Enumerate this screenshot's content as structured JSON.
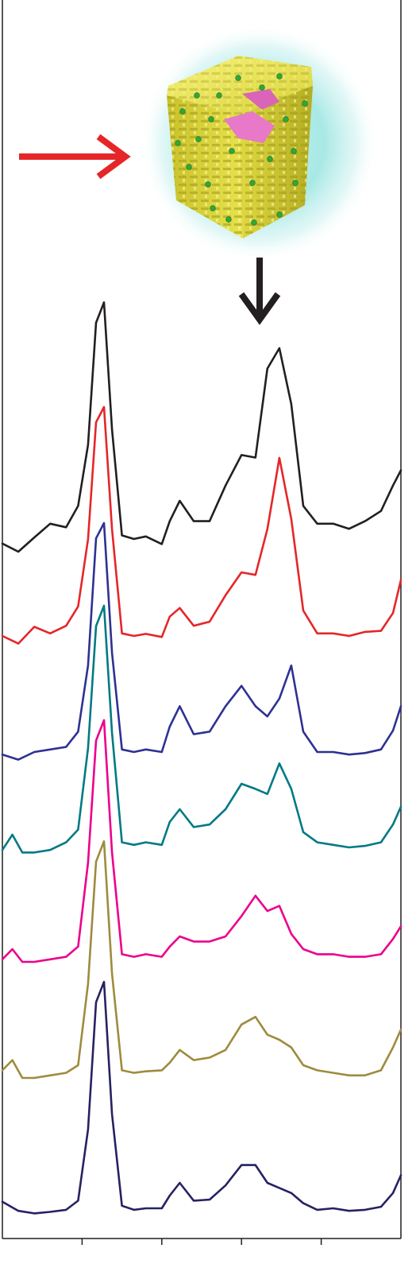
{
  "chart_data": {
    "type": "line",
    "title": "",
    "xlabel": "",
    "ylabel": "",
    "xlim": [
      0,
      10
    ],
    "ylim": [
      0,
      12
    ],
    "grid": false,
    "legend": "none",
    "x_ticks": [
      2,
      4,
      6,
      8
    ],
    "annotations": [
      {
        "kind": "arrow",
        "direction": "right",
        "color": "#e52629",
        "target": "nanocube-illustration"
      },
      {
        "kind": "arrow",
        "direction": "down",
        "color": "#231f20",
        "target_x": 6.4,
        "target_series": 0
      }
    ],
    "series": [
      {
        "color": "#231f20",
        "values": [
          [
            0.0,
            1.16
          ],
          [
            0.4,
            1.0
          ],
          [
            0.8,
            1.28
          ],
          [
            1.2,
            1.55
          ],
          [
            1.6,
            1.48
          ],
          [
            1.9,
            1.9
          ],
          [
            2.15,
            3.1
          ],
          [
            2.35,
            5.5
          ],
          [
            2.55,
            5.9
          ],
          [
            2.75,
            3.4
          ],
          [
            3.0,
            1.32
          ],
          [
            3.3,
            1.25
          ],
          [
            3.6,
            1.3
          ],
          [
            4.0,
            1.15
          ],
          [
            4.2,
            1.6
          ],
          [
            4.45,
            2.0
          ],
          [
            4.8,
            1.6
          ],
          [
            5.2,
            1.6
          ],
          [
            5.6,
            2.3
          ],
          [
            6.0,
            2.9
          ],
          [
            6.35,
            2.85
          ],
          [
            6.65,
            4.6
          ],
          [
            6.95,
            5.0
          ],
          [
            7.25,
            3.9
          ],
          [
            7.55,
            1.9
          ],
          [
            7.9,
            1.55
          ],
          [
            8.3,
            1.55
          ],
          [
            8.7,
            1.45
          ],
          [
            9.1,
            1.6
          ],
          [
            9.5,
            1.8
          ],
          [
            9.8,
            2.3
          ],
          [
            10.0,
            2.6
          ]
        ]
      },
      {
        "color": "#e52629",
        "values": [
          [
            0.0,
            1.0
          ],
          [
            0.4,
            0.85
          ],
          [
            0.8,
            1.18
          ],
          [
            1.2,
            1.05
          ],
          [
            1.6,
            1.2
          ],
          [
            1.9,
            1.58
          ],
          [
            2.15,
            2.9
          ],
          [
            2.35,
            5.2
          ],
          [
            2.55,
            5.5
          ],
          [
            2.75,
            3.1
          ],
          [
            3.0,
            1.05
          ],
          [
            3.3,
            1.0
          ],
          [
            3.6,
            1.04
          ],
          [
            4.0,
            0.98
          ],
          [
            4.2,
            1.38
          ],
          [
            4.45,
            1.55
          ],
          [
            4.8,
            1.2
          ],
          [
            5.2,
            1.28
          ],
          [
            5.6,
            1.8
          ],
          [
            6.0,
            2.25
          ],
          [
            6.35,
            2.2
          ],
          [
            6.65,
            3.1
          ],
          [
            6.95,
            4.5
          ],
          [
            7.25,
            3.3
          ],
          [
            7.55,
            1.5
          ],
          [
            7.9,
            1.05
          ],
          [
            8.3,
            1.05
          ],
          [
            8.7,
            1.0
          ],
          [
            9.1,
            1.08
          ],
          [
            9.5,
            1.1
          ],
          [
            9.8,
            1.45
          ],
          [
            10.0,
            2.1
          ]
        ]
      },
      {
        "color": "#2e3192",
        "values": [
          [
            0.0,
            0.95
          ],
          [
            0.4,
            0.85
          ],
          [
            0.8,
            1.0
          ],
          [
            1.2,
            1.05
          ],
          [
            1.6,
            1.1
          ],
          [
            1.9,
            1.4
          ],
          [
            2.15,
            2.7
          ],
          [
            2.35,
            5.2
          ],
          [
            2.55,
            5.5
          ],
          [
            2.75,
            2.95
          ],
          [
            3.0,
            1.05
          ],
          [
            3.3,
            1.0
          ],
          [
            3.6,
            1.05
          ],
          [
            4.0,
            1.0
          ],
          [
            4.2,
            1.5
          ],
          [
            4.45,
            1.9
          ],
          [
            4.8,
            1.35
          ],
          [
            5.2,
            1.4
          ],
          [
            5.6,
            1.9
          ],
          [
            6.0,
            2.3
          ],
          [
            6.35,
            1.9
          ],
          [
            6.65,
            1.7
          ],
          [
            6.95,
            2.05
          ],
          [
            7.25,
            2.7
          ],
          [
            7.55,
            1.4
          ],
          [
            7.9,
            1.0
          ],
          [
            8.3,
            1.0
          ],
          [
            8.7,
            0.95
          ],
          [
            9.1,
            0.98
          ],
          [
            9.5,
            1.05
          ],
          [
            9.8,
            1.42
          ],
          [
            10.0,
            1.9
          ]
        ]
      },
      {
        "color": "#007a84",
        "values": [
          [
            0.0,
            1.2
          ],
          [
            0.25,
            1.5
          ],
          [
            0.5,
            1.15
          ],
          [
            0.8,
            1.15
          ],
          [
            1.2,
            1.2
          ],
          [
            1.6,
            1.35
          ],
          [
            1.9,
            1.6
          ],
          [
            2.15,
            3.2
          ],
          [
            2.35,
            5.6
          ],
          [
            2.55,
            6.0
          ],
          [
            2.75,
            3.5
          ],
          [
            3.0,
            1.35
          ],
          [
            3.3,
            1.3
          ],
          [
            3.6,
            1.35
          ],
          [
            4.0,
            1.3
          ],
          [
            4.2,
            1.75
          ],
          [
            4.45,
            2.0
          ],
          [
            4.8,
            1.65
          ],
          [
            5.2,
            1.7
          ],
          [
            5.6,
            2.0
          ],
          [
            6.0,
            2.5
          ],
          [
            6.35,
            2.4
          ],
          [
            6.65,
            2.3
          ],
          [
            6.95,
            2.9
          ],
          [
            7.25,
            2.4
          ],
          [
            7.55,
            1.55
          ],
          [
            7.9,
            1.35
          ],
          [
            8.3,
            1.3
          ],
          [
            8.7,
            1.25
          ],
          [
            9.1,
            1.28
          ],
          [
            9.5,
            1.35
          ],
          [
            9.8,
            1.7
          ],
          [
            10.0,
            2.05
          ]
        ]
      },
      {
        "color": "#ec008c",
        "values": [
          [
            0.0,
            1.3
          ],
          [
            0.25,
            1.5
          ],
          [
            0.5,
            1.25
          ],
          [
            0.8,
            1.25
          ],
          [
            1.2,
            1.3
          ],
          [
            1.6,
            1.35
          ],
          [
            1.9,
            1.55
          ],
          [
            2.15,
            3.2
          ],
          [
            2.35,
            5.6
          ],
          [
            2.55,
            6.0
          ],
          [
            2.75,
            3.4
          ],
          [
            3.0,
            1.4
          ],
          [
            3.3,
            1.35
          ],
          [
            3.6,
            1.4
          ],
          [
            4.0,
            1.35
          ],
          [
            4.2,
            1.55
          ],
          [
            4.45,
            1.75
          ],
          [
            4.8,
            1.65
          ],
          [
            5.2,
            1.65
          ],
          [
            5.6,
            1.75
          ],
          [
            6.0,
            2.15
          ],
          [
            6.35,
            2.55
          ],
          [
            6.65,
            2.25
          ],
          [
            6.95,
            2.35
          ],
          [
            7.25,
            1.8
          ],
          [
            7.55,
            1.5
          ],
          [
            7.9,
            1.4
          ],
          [
            8.3,
            1.4
          ],
          [
            8.7,
            1.35
          ],
          [
            9.1,
            1.35
          ],
          [
            9.5,
            1.4
          ],
          [
            9.8,
            1.7
          ],
          [
            10.0,
            1.95
          ]
        ]
      },
      {
        "color": "#9e8b3e",
        "values": [
          [
            0.0,
            1.4
          ],
          [
            0.25,
            1.6
          ],
          [
            0.5,
            1.25
          ],
          [
            0.8,
            1.25
          ],
          [
            1.2,
            1.3
          ],
          [
            1.6,
            1.35
          ],
          [
            1.9,
            1.5
          ],
          [
            2.15,
            3.1
          ],
          [
            2.35,
            5.5
          ],
          [
            2.55,
            5.9
          ],
          [
            2.75,
            3.3
          ],
          [
            3.0,
            1.4
          ],
          [
            3.3,
            1.35
          ],
          [
            3.6,
            1.38
          ],
          [
            4.0,
            1.4
          ],
          [
            4.2,
            1.55
          ],
          [
            4.45,
            1.8
          ],
          [
            4.8,
            1.6
          ],
          [
            5.2,
            1.65
          ],
          [
            5.6,
            1.8
          ],
          [
            6.0,
            2.3
          ],
          [
            6.35,
            2.45
          ],
          [
            6.65,
            2.1
          ],
          [
            6.95,
            2.0
          ],
          [
            7.25,
            1.85
          ],
          [
            7.55,
            1.5
          ],
          [
            7.9,
            1.4
          ],
          [
            8.3,
            1.35
          ],
          [
            8.7,
            1.3
          ],
          [
            9.1,
            1.3
          ],
          [
            9.5,
            1.4
          ],
          [
            9.8,
            1.85
          ],
          [
            10.0,
            2.2
          ]
        ]
      },
      {
        "color": "#262262",
        "values": [
          [
            0.0,
            1.38
          ],
          [
            0.4,
            1.2
          ],
          [
            0.8,
            1.15
          ],
          [
            1.2,
            1.18
          ],
          [
            1.6,
            1.22
          ],
          [
            1.9,
            1.4
          ],
          [
            2.15,
            2.8
          ],
          [
            2.35,
            5.3
          ],
          [
            2.55,
            5.7
          ],
          [
            2.75,
            3.1
          ],
          [
            3.0,
            1.3
          ],
          [
            3.3,
            1.22
          ],
          [
            3.6,
            1.25
          ],
          [
            4.0,
            1.25
          ],
          [
            4.2,
            1.5
          ],
          [
            4.45,
            1.75
          ],
          [
            4.8,
            1.4
          ],
          [
            5.2,
            1.42
          ],
          [
            5.6,
            1.7
          ],
          [
            6.0,
            2.1
          ],
          [
            6.35,
            2.1
          ],
          [
            6.65,
            1.75
          ],
          [
            6.95,
            1.65
          ],
          [
            7.25,
            1.55
          ],
          [
            7.55,
            1.35
          ],
          [
            7.9,
            1.22
          ],
          [
            8.3,
            1.25
          ],
          [
            8.7,
            1.2
          ],
          [
            9.1,
            1.22
          ],
          [
            9.5,
            1.28
          ],
          [
            9.8,
            1.55
          ],
          [
            10.0,
            1.9
          ]
        ]
      }
    ]
  }
}
